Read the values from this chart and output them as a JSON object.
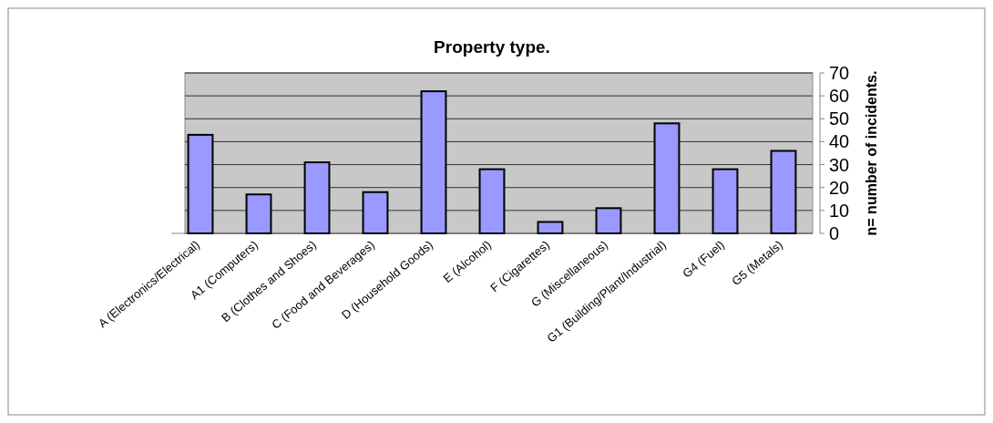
{
  "chart_data": {
    "type": "bar",
    "title": "Property type.",
    "ylabel": "n= number of incidents.",
    "categories": [
      "A (Electronics/Electrical)",
      "A1 (Computers)",
      "B (Clothes and Shoes)",
      "C (Food and Beverages)",
      "D (Household Goods)",
      "E (Alcohol)",
      "F (Cigarettes)",
      "G (Miscellaneous)",
      "G1 (Building/Plant/Industrial)",
      "G4 (Fuel)",
      "G5 (Metals)"
    ],
    "values": [
      43,
      17,
      31,
      18,
      62,
      28,
      5,
      11,
      48,
      28,
      36
    ],
    "color": "#9999ff",
    "ylim": [
      0,
      70
    ],
    "yticks": [
      0,
      10,
      20,
      30,
      40,
      50,
      60,
      70
    ],
    "grid": "y"
  }
}
